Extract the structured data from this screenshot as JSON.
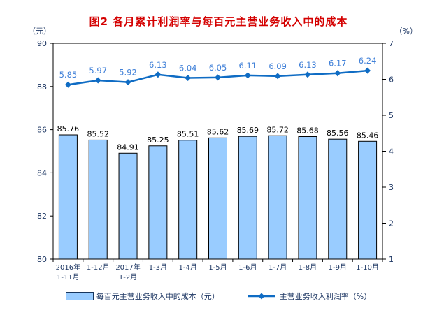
{
  "chart_data": {
    "type": "combo-bar-line",
    "title": "图2  各月累计利润率与每百元主营业务收入中的成本",
    "title_color": "#d40000",
    "categories": [
      [
        "2016年",
        "1-11月"
      ],
      [
        "1-12月"
      ],
      [
        "2017年",
        "1-2月"
      ],
      [
        "1-3月"
      ],
      [
        "1-4月"
      ],
      [
        "1-5月"
      ],
      [
        "1-6月"
      ],
      [
        "1-7月"
      ],
      [
        "1-8月"
      ],
      [
        "1-9月"
      ],
      [
        "1-10月"
      ]
    ],
    "series": [
      {
        "name": "每百元主营业务收入中的成本（元）",
        "type": "bar",
        "axis": "left",
        "color": "#99CCFF",
        "border_color": "#000000",
        "label_color": "#000000",
        "values": [
          85.76,
          85.52,
          84.91,
          85.25,
          85.51,
          85.62,
          85.69,
          85.72,
          85.68,
          85.56,
          85.46
        ]
      },
      {
        "name": "主营业务收入利润率（%）",
        "type": "line",
        "axis": "right",
        "color": "#0F6CC4",
        "label_color": "#4080D8",
        "marker": "diamond",
        "values": [
          5.85,
          5.97,
          5.92,
          6.13,
          6.04,
          6.05,
          6.11,
          6.09,
          6.13,
          6.17,
          6.24
        ]
      }
    ],
    "left_axis": {
      "unit": "（元）",
      "min": 80,
      "max": 90,
      "ticks": [
        80,
        82,
        84,
        86,
        88,
        90
      ]
    },
    "right_axis": {
      "unit": "（%）",
      "min": 1,
      "max": 7,
      "ticks": [
        1,
        2,
        3,
        4,
        5,
        6,
        7
      ]
    },
    "grid": false,
    "legend_position": "bottom"
  }
}
